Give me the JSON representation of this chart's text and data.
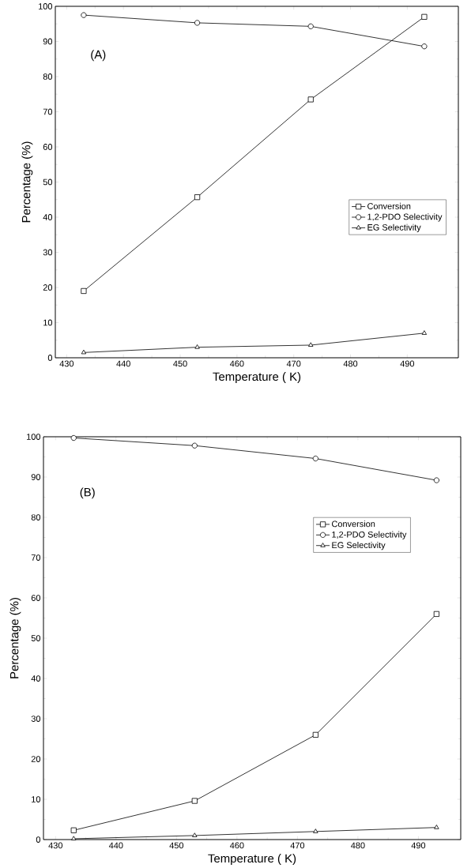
{
  "chart_data": [
    {
      "type": "line",
      "xlabel": "Temperature ( K)",
      "ylabel": "Percentage (%)",
      "annotations": [
        "(A)"
      ],
      "x": [
        433,
        453,
        473,
        493
      ],
      "xlim": [
        428,
        499
      ],
      "xticks": [
        430,
        440,
        450,
        460,
        470,
        480,
        490
      ],
      "ylim": [
        0,
        100
      ],
      "yticks": [
        0,
        10,
        20,
        30,
        40,
        50,
        60,
        70,
        80,
        90,
        100
      ],
      "legend": "right",
      "grid": false,
      "line_style": "solid",
      "series": [
        {
          "name": "Conversion",
          "color": "#000000",
          "marker": "square",
          "values": [
            19,
            45.7,
            73.5,
            97
          ]
        },
        {
          "name": "1,2-PDO Selectivity",
          "color": "#000000",
          "marker": "circle",
          "values": [
            97.5,
            95.3,
            94.3,
            88.6
          ]
        },
        {
          "name": "EG Selectivity",
          "color": "#000000",
          "marker": "triangle",
          "values": [
            1.5,
            3,
            3.6,
            7
          ]
        }
      ]
    },
    {
      "type": "line",
      "xlabel": "Temperature ( K)",
      "ylabel": "Percentage (%)",
      "annotations": [
        "(B)"
      ],
      "x": [
        433,
        453,
        473,
        493
      ],
      "xlim": [
        428,
        497
      ],
      "xticks": [
        430,
        440,
        450,
        460,
        470,
        480,
        490
      ],
      "ylim": [
        0,
        100
      ],
      "yticks": [
        0,
        10,
        20,
        30,
        40,
        50,
        60,
        70,
        80,
        90,
        100
      ],
      "legend": "top right",
      "grid": false,
      "line_style": "solid",
      "series": [
        {
          "name": "Conversion",
          "color": "#000000",
          "marker": "square",
          "values": [
            2.3,
            9.6,
            26,
            56
          ]
        },
        {
          "name": "1,2-PDO Selectivity",
          "color": "#000000",
          "marker": "circle",
          "values": [
            99.7,
            97.8,
            94.6,
            89.2
          ]
        },
        {
          "name": "EG Selectivity",
          "color": "#000000",
          "marker": "triangle",
          "values": [
            0.2,
            1,
            2,
            3
          ]
        }
      ]
    }
  ]
}
